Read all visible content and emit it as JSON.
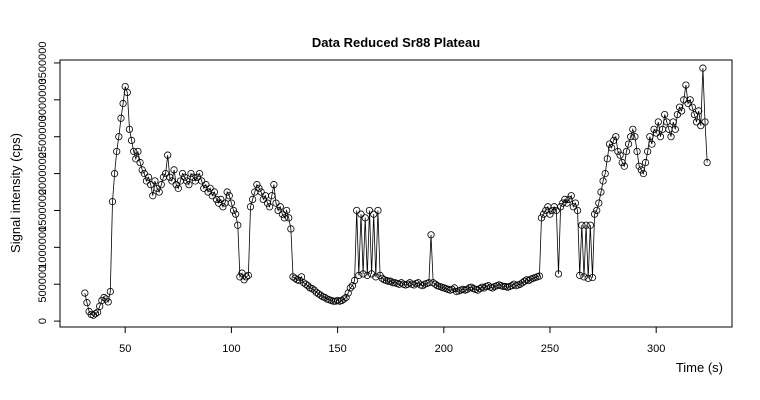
{
  "chart_data": {
    "type": "line",
    "marker": "circle",
    "color": "#000000",
    "title": "Data Reduced Sr88 Plateau",
    "x_label": "Time (s)",
    "y_label": "Signal intensity (cps)",
    "xlim": [
      19.3,
      335.7
    ],
    "ylim": [
      -80000,
      3540000
    ],
    "xticks": [
      50,
      100,
      150,
      200,
      250,
      300
    ],
    "yticks": [
      0,
      500000,
      1000000,
      1500000,
      2000000,
      2500000,
      3000000,
      3500000
    ],
    "x": [
      31,
      32,
      33,
      34,
      35,
      36,
      37,
      38,
      39,
      40,
      41,
      42,
      43,
      44,
      45,
      46,
      47,
      48,
      49,
      50,
      51,
      52,
      53,
      54,
      55,
      56,
      57,
      58,
      59,
      60,
      61,
      62,
      63,
      64,
      65,
      66,
      67,
      68,
      69,
      70,
      71,
      72,
      73,
      74,
      75,
      76,
      77,
      78,
      79,
      80,
      81,
      82,
      83,
      84,
      85,
      86,
      87,
      88,
      89,
      90,
      91,
      92,
      93,
      94,
      95,
      96,
      97,
      98,
      99,
      100,
      101,
      102,
      103,
      104,
      105,
      106,
      107,
      108,
      109,
      110,
      111,
      112,
      113,
      114,
      115,
      116,
      117,
      118,
      119,
      120,
      121,
      122,
      123,
      124,
      125,
      126,
      127,
      128,
      129,
      130,
      131,
      132,
      133,
      134,
      135,
      136,
      137,
      138,
      139,
      140,
      141,
      142,
      143,
      144,
      145,
      146,
      147,
      148,
      149,
      150,
      151,
      152,
      153,
      154,
      155,
      156,
      157,
      158,
      159,
      160,
      161,
      162,
      163,
      164,
      165,
      166,
      167,
      168,
      169,
      170,
      171,
      172,
      173,
      174,
      175,
      176,
      177,
      178,
      179,
      180,
      181,
      182,
      183,
      184,
      185,
      186,
      187,
      188,
      189,
      190,
      191,
      192,
      193,
      194,
      195,
      196,
      197,
      198,
      199,
      200,
      201,
      202,
      203,
      204,
      205,
      206,
      207,
      208,
      209,
      210,
      211,
      212,
      213,
      214,
      215,
      216,
      217,
      218,
      219,
      220,
      221,
      222,
      223,
      224,
      225,
      226,
      227,
      228,
      229,
      230,
      231,
      232,
      233,
      234,
      235,
      236,
      237,
      238,
      239,
      240,
      241,
      242,
      243,
      244,
      245,
      246,
      247,
      248,
      249,
      250,
      251,
      252,
      253,
      254,
      255,
      256,
      257,
      258,
      259,
      260,
      261,
      262,
      263,
      264,
      265,
      266,
      267,
      268,
      269,
      270,
      271,
      272,
      273,
      274,
      275,
      276,
      277,
      278,
      279,
      280,
      281,
      282,
      283,
      284,
      285,
      286,
      287,
      288,
      289,
      290,
      291,
      292,
      293,
      294,
      295,
      296,
      297,
      298,
      299,
      300,
      301,
      302,
      303,
      304,
      305,
      306,
      307,
      308,
      309,
      310,
      311,
      312,
      313,
      314,
      315,
      316,
      317,
      318,
      319,
      320,
      321,
      322,
      323,
      324
    ],
    "values": [
      380000,
      250000,
      130000,
      90000,
      80000,
      100000,
      120000,
      200000,
      280000,
      320000,
      300000,
      260000,
      400000,
      1620000,
      2000000,
      2300000,
      2500000,
      2750000,
      2950000,
      3180000,
      3100000,
      2600000,
      2450000,
      2300000,
      2200000,
      2300000,
      2150000,
      2050000,
      2000000,
      1900000,
      1950000,
      1850000,
      1700000,
      1900000,
      1800000,
      1750000,
      1850000,
      1950000,
      2000000,
      2250000,
      1950000,
      1900000,
      2050000,
      1850000,
      1800000,
      1900000,
      2000000,
      1950000,
      1900000,
      1850000,
      2000000,
      1950000,
      1900000,
      1950000,
      2000000,
      1900000,
      1800000,
      1850000,
      1750000,
      1800000,
      1700000,
      1750000,
      1650000,
      1600000,
      1650000,
      1550000,
      1600000,
      1750000,
      1700000,
      1600000,
      1500000,
      1450000,
      1300000,
      600000,
      650000,
      560000,
      600000,
      620000,
      1550000,
      1650000,
      1750000,
      1850000,
      1800000,
      1750000,
      1650000,
      1700000,
      1600000,
      1550000,
      1700000,
      1850000,
      1600000,
      1500000,
      1550000,
      1450000,
      1400000,
      1500000,
      1400000,
      1250000,
      600000,
      580000,
      560000,
      550000,
      600000,
      520000,
      500000,
      480000,
      450000,
      440000,
      420000,
      390000,
      370000,
      350000,
      330000,
      320000,
      300000,
      290000,
      280000,
      270000,
      270000,
      280000,
      270000,
      280000,
      300000,
      320000,
      380000,
      450000,
      480000,
      550000,
      1500000,
      620000,
      1450000,
      640000,
      1400000,
      620000,
      1500000,
      640000,
      1450000,
      600000,
      1500000,
      620000,
      580000,
      560000,
      550000,
      540000,
      540000,
      520000,
      520000,
      510000,
      500000,
      520000,
      500000,
      490000,
      500000,
      520000,
      500000,
      490000,
      510000,
      520000,
      490000,
      480000,
      500000,
      510000,
      520000,
      1170000,
      520000,
      500000,
      480000,
      470000,
      460000,
      450000,
      440000,
      430000,
      420000,
      430000,
      450000,
      400000,
      410000,
      420000,
      430000,
      420000,
      430000,
      450000,
      460000,
      440000,
      430000,
      420000,
      440000,
      460000,
      450000,
      470000,
      480000,
      460000,
      450000,
      470000,
      480000,
      490000,
      480000,
      470000,
      470000,
      460000,
      470000,
      480000,
      500000,
      480000,
      490000,
      500000,
      520000,
      540000,
      560000,
      550000,
      570000,
      580000,
      590000,
      600000,
      610000,
      1400000,
      1450000,
      1500000,
      1550000,
      1450000,
      1500000,
      1550000,
      1500000,
      640000,
      1550000,
      1600000,
      1650000,
      1600000,
      1650000,
      1700000,
      1550000,
      1600000,
      1500000,
      620000,
      1300000,
      600000,
      1300000,
      580000,
      1300000,
      590000,
      1450000,
      1500000,
      1600000,
      1750000,
      1900000,
      2000000,
      2200000,
      2400000,
      2350000,
      2450000,
      2500000,
      2300000,
      2250000,
      2150000,
      2100000,
      2300000,
      2400000,
      2500000,
      2600000,
      2500000,
      2300000,
      2100000,
      2050000,
      2000000,
      2150000,
      2300000,
      2500000,
      2400000,
      2600000,
      2550000,
      2700000,
      2500000,
      2600000,
      2800000,
      2700000,
      2600000,
      2500000,
      2700000,
      2600000,
      2800000,
      2900000,
      2850000,
      3000000,
      3200000,
      2950000,
      3000000,
      2900000,
      2800000,
      2700000,
      2850000,
      2650000,
      3430000,
      2700000,
      2150000
    ]
  }
}
